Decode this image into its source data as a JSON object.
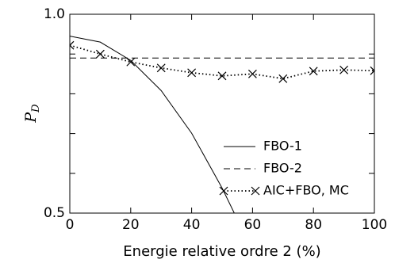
{
  "chart_data": {
    "type": "line",
    "xlabel": "Energie relative ordre 2 (%)",
    "ylabel": "P",
    "ylabel_subscript": "D",
    "xlim": [
      0,
      100
    ],
    "xticks": [
      0,
      20,
      40,
      60,
      80,
      100
    ],
    "ylim": [
      0.5,
      1.0
    ],
    "yticks": [
      0.5,
      {
        "value": 1.0,
        "label": "1.0"
      }
    ],
    "yminorticks": [
      0.6,
      0.7,
      0.8,
      0.9
    ],
    "legend": "lower right",
    "series": [
      {
        "name": "FBO-1",
        "color": "#000000",
        "linestyle": "solid",
        "marker": null,
        "x": [
          0,
          10,
          20,
          30,
          40,
          50,
          54
        ],
        "values": [
          0.945,
          0.93,
          0.884,
          0.808,
          0.701,
          0.563,
          0.5
        ]
      },
      {
        "name": "FBO-2",
        "color": "#000000",
        "linestyle": "dashed",
        "marker": null,
        "x": [
          0,
          100
        ],
        "values": [
          0.89,
          0.89
        ]
      },
      {
        "name": "AIC+FBO, MC",
        "color": "#000000",
        "linestyle": "dotted",
        "marker": "x",
        "x": [
          0,
          10,
          20,
          30,
          40,
          50,
          60,
          70,
          80,
          90,
          100
        ],
        "values": [
          0.922,
          0.9,
          0.88,
          0.865,
          0.853,
          0.845,
          0.85,
          0.838,
          0.857,
          0.86,
          0.858
        ]
      }
    ]
  }
}
